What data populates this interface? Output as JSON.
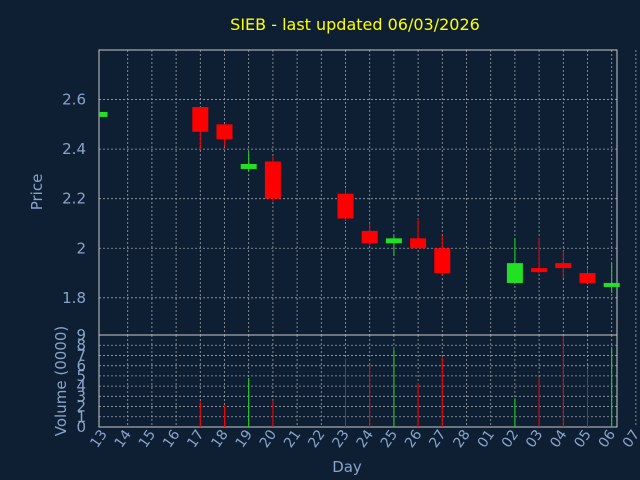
{
  "chart_data": {
    "type": "candlestick",
    "title": "SIEB - last updated 06/03/2026",
    "xlabel": "Day",
    "price_axis": {
      "label": "Price",
      "ylim": [
        1.65,
        2.8
      ],
      "ticks": [
        1.8,
        2,
        2.2,
        2.4,
        2.6
      ],
      "tick_labels": [
        "1.8",
        "2",
        "2.2",
        "2.4",
        "2.6"
      ]
    },
    "volume_axis": {
      "label": "Volume (0000)",
      "ylim": [
        0,
        9
      ],
      "ticks": [
        0,
        1,
        2,
        3,
        4,
        5,
        6,
        7,
        8,
        9
      ],
      "tick_labels": [
        "0",
        "1",
        "2",
        "3",
        "4",
        "5",
        "6",
        "7",
        "8",
        "9"
      ]
    },
    "x_tick_labels": [
      "13",
      "14",
      "15",
      "16",
      "17",
      "18",
      "19",
      "20",
      "21",
      "22",
      "23",
      "24",
      "25",
      "26",
      "27",
      "28",
      "01",
      "02",
      "03",
      "04",
      "05",
      "06",
      "07"
    ],
    "grid": true,
    "colors": {
      "background": "#0f1f33",
      "up": "#22e022",
      "down": "#ff0000",
      "title": "#ffff00",
      "axis_text": "#8aa4c8",
      "grid": "#9aa0a8",
      "frame": "#c8c8c8"
    },
    "candles": [
      {
        "day": "13",
        "open": 2.53,
        "high": 2.55,
        "low": 2.53,
        "close": 2.55,
        "volume": 0
      },
      {
        "day": "17",
        "open": 2.57,
        "high": 2.57,
        "low": 2.4,
        "close": 2.47,
        "volume": 2.5
      },
      {
        "day": "18",
        "open": 2.5,
        "high": 2.5,
        "low": 2.41,
        "close": 2.44,
        "volume": 2.1
      },
      {
        "day": "19",
        "open": 2.32,
        "high": 2.39,
        "low": 2.31,
        "close": 2.34,
        "volume": 4.8
      },
      {
        "day": "20",
        "open": 2.35,
        "high": 2.37,
        "low": 2.19,
        "close": 2.2,
        "volume": 2.6
      },
      {
        "day": "23",
        "open": 2.22,
        "high": 2.24,
        "low": 2.11,
        "close": 2.12,
        "volume": 6.7
      },
      {
        "day": "24",
        "open": 2.07,
        "high": 2.1,
        "low": 2.01,
        "close": 2.02,
        "volume": 6.1
      },
      {
        "day": "25",
        "open": 2.02,
        "high": 2.05,
        "low": 1.97,
        "close": 2.04,
        "volume": 7.6
      },
      {
        "day": "26",
        "open": 2.04,
        "high": 2.12,
        "low": 2.0,
        "close": 2.0,
        "volume": 4.3
      },
      {
        "day": "27",
        "open": 2.0,
        "high": 2.05,
        "low": 1.89,
        "close": 1.9,
        "volume": 6.8
      },
      {
        "day": "02",
        "open": 1.86,
        "high": 2.04,
        "low": 1.86,
        "close": 1.94,
        "volume": 2.8
      },
      {
        "day": "03",
        "open": 1.92,
        "high": 2.04,
        "low": 1.9,
        "close": 1.91,
        "volume": 4.9
      },
      {
        "day": "04",
        "open": 1.94,
        "high": 1.99,
        "low": 1.88,
        "close": 1.92,
        "volume": 8.9
      },
      {
        "day": "05",
        "open": 1.9,
        "high": 1.92,
        "low": 1.86,
        "close": 1.86,
        "volume": 5.7
      },
      {
        "day": "06",
        "open": 1.85,
        "high": 1.94,
        "low": 1.82,
        "close": 1.86,
        "volume": 7.7
      }
    ]
  }
}
